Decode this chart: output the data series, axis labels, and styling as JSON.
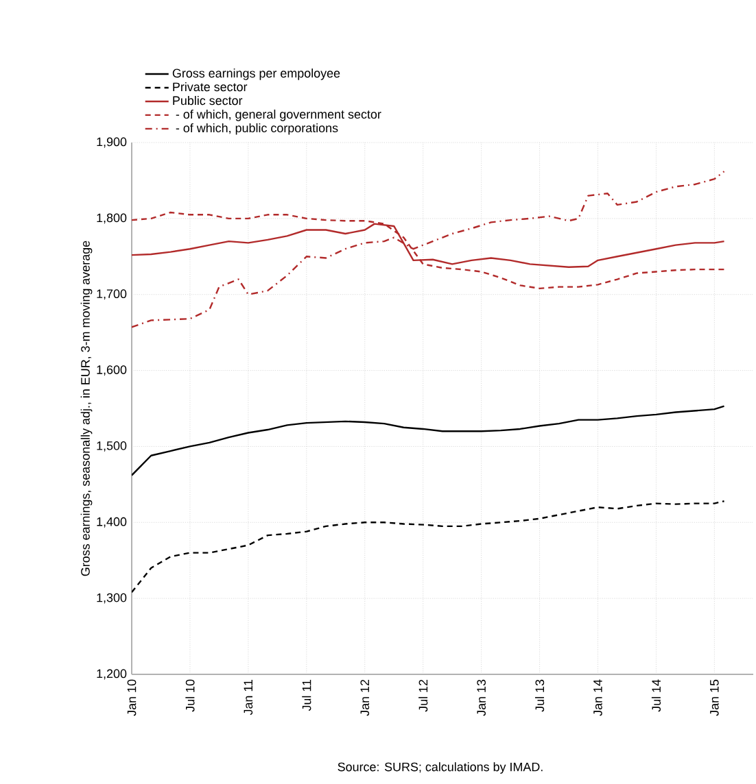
{
  "chart_data": {
    "type": "line",
    "xlabel": null,
    "ylabel": "Gross earnings, seasonally adj., in EUR, 3-m moving average",
    "annotations": [
      "Source: SURS; calculations by IMAD."
    ],
    "xlim": [
      "2010-01",
      "2015-05"
    ],
    "xticks": [
      {
        "value": "2010-01",
        "label": "Jan 10"
      },
      {
        "value": "2010-07",
        "label": "Jul 10"
      },
      {
        "value": "2011-01",
        "label": "Jan 11"
      },
      {
        "value": "2011-07",
        "label": "Jul 11"
      },
      {
        "value": "2012-01",
        "label": "Jan 12"
      },
      {
        "value": "2012-07",
        "label": "Jul 12"
      },
      {
        "value": "2013-01",
        "label": "Jan 13"
      },
      {
        "value": "2013-07",
        "label": "Jul 13"
      },
      {
        "value": "2014-01",
        "label": "Jan 14"
      },
      {
        "value": "2014-07",
        "label": "Jul 14"
      },
      {
        "value": "2015-01",
        "label": "Jan 15"
      }
    ],
    "ylim": [
      1200,
      1900
    ],
    "yticks": [
      {
        "value": 1200,
        "label": "1,200"
      },
      {
        "value": 1300,
        "label": "1,300"
      },
      {
        "value": 1400,
        "label": "1,400"
      },
      {
        "value": 1500,
        "label": "1,500"
      },
      {
        "value": 1600,
        "label": "1,600"
      },
      {
        "value": 1700,
        "label": "1,700"
      },
      {
        "value": 1800,
        "label": "1,800"
      },
      {
        "value": 1900,
        "label": "1,900"
      }
    ],
    "grid": true,
    "legend": "top",
    "marker": "none",
    "series": [
      {
        "name": "Gross earnings per empoloyee",
        "color": "#000000",
        "line_style": "solid",
        "x": [
          "2010-01",
          "2010-03",
          "2010-05",
          "2010-07",
          "2010-09",
          "2010-11",
          "2011-01",
          "2011-03",
          "2011-05",
          "2011-07",
          "2011-09",
          "2011-11",
          "2012-01",
          "2012-03",
          "2012-05",
          "2012-07",
          "2012-09",
          "2012-11",
          "2013-01",
          "2013-03",
          "2013-05",
          "2013-07",
          "2013-09",
          "2013-11",
          "2014-01",
          "2014-03",
          "2014-05",
          "2014-07",
          "2014-09",
          "2014-11",
          "2015-01",
          "2015-02"
        ],
        "values": [
          1462,
          1488,
          1494,
          1500,
          1505,
          1512,
          1518,
          1522,
          1528,
          1531,
          1532,
          1533,
          1532,
          1530,
          1525,
          1523,
          1520,
          1520,
          1520,
          1521,
          1523,
          1527,
          1530,
          1535,
          1535,
          1537,
          1540,
          1542,
          1545,
          1547,
          1549,
          1553
        ]
      },
      {
        "name": "Private sector",
        "color": "#000000",
        "line_style": "dashed",
        "x": [
          "2010-01",
          "2010-03",
          "2010-05",
          "2010-07",
          "2010-09",
          "2010-11",
          "2011-01",
          "2011-03",
          "2011-05",
          "2011-07",
          "2011-09",
          "2011-11",
          "2012-01",
          "2012-03",
          "2012-05",
          "2012-07",
          "2012-09",
          "2012-11",
          "2013-01",
          "2013-03",
          "2013-05",
          "2013-07",
          "2013-09",
          "2013-11",
          "2014-01",
          "2014-03",
          "2014-05",
          "2014-07",
          "2014-09",
          "2014-11",
          "2015-01",
          "2015-02"
        ],
        "values": [
          1308,
          1340,
          1355,
          1360,
          1360,
          1365,
          1370,
          1383,
          1385,
          1388,
          1395,
          1398,
          1400,
          1400,
          1398,
          1397,
          1395,
          1395,
          1398,
          1400,
          1402,
          1405,
          1410,
          1415,
          1420,
          1418,
          1422,
          1425,
          1424,
          1425,
          1425,
          1428
        ]
      },
      {
        "name": "Public sector",
        "color": "#b22a2a",
        "line_style": "solid",
        "x": [
          "2010-01",
          "2010-03",
          "2010-05",
          "2010-07",
          "2010-09",
          "2010-11",
          "2011-01",
          "2011-03",
          "2011-05",
          "2011-07",
          "2011-09",
          "2011-11",
          "2012-01",
          "2012-02",
          "2012-04",
          "2012-06",
          "2012-08",
          "2012-10",
          "2012-12",
          "2013-02",
          "2013-04",
          "2013-06",
          "2013-08",
          "2013-10",
          "2013-12",
          "2014-01",
          "2014-03",
          "2014-05",
          "2014-07",
          "2014-09",
          "2014-11",
          "2015-01",
          "2015-02"
        ],
        "values": [
          1752,
          1753,
          1756,
          1760,
          1765,
          1770,
          1768,
          1772,
          1777,
          1785,
          1785,
          1780,
          1785,
          1793,
          1790,
          1745,
          1746,
          1740,
          1745,
          1748,
          1745,
          1740,
          1738,
          1736,
          1737,
          1745,
          1750,
          1755,
          1760,
          1765,
          1768,
          1768,
          1770
        ]
      },
      {
        "name": "     - of which, general government sector",
        "color": "#b22a2a",
        "line_style": "dashed",
        "x": [
          "2010-01",
          "2010-03",
          "2010-05",
          "2010-07",
          "2010-09",
          "2010-11",
          "2011-01",
          "2011-03",
          "2011-05",
          "2011-07",
          "2011-09",
          "2011-11",
          "2012-01",
          "2012-03",
          "2012-05",
          "2012-07",
          "2012-09",
          "2012-11",
          "2013-01",
          "2013-03",
          "2013-05",
          "2013-07",
          "2013-09",
          "2013-11",
          "2014-01",
          "2014-03",
          "2014-05",
          "2014-07",
          "2014-09",
          "2014-11",
          "2015-01",
          "2015-02"
        ],
        "values": [
          1798,
          1800,
          1808,
          1805,
          1805,
          1800,
          1800,
          1805,
          1805,
          1800,
          1798,
          1797,
          1797,
          1793,
          1775,
          1740,
          1735,
          1733,
          1730,
          1722,
          1712,
          1708,
          1710,
          1710,
          1713,
          1720,
          1728,
          1730,
          1732,
          1733,
          1733,
          1733
        ]
      },
      {
        "name": "     - of which, public corporations",
        "color": "#b22a2a",
        "line_style": "dashdot",
        "x": [
          "2010-01",
          "2010-03",
          "2010-05",
          "2010-07",
          "2010-09",
          "2010-10",
          "2010-12",
          "2011-01",
          "2011-03",
          "2011-05",
          "2011-07",
          "2011-09",
          "2011-11",
          "2012-01",
          "2012-03",
          "2012-04",
          "2012-06",
          "2012-08",
          "2012-10",
          "2012-12",
          "2013-02",
          "2013-04",
          "2013-06",
          "2013-08",
          "2013-10",
          "2013-11",
          "2013-12",
          "2014-02",
          "2014-03",
          "2014-05",
          "2014-07",
          "2014-09",
          "2014-11",
          "2015-01",
          "2015-02"
        ],
        "values": [
          1657,
          1666,
          1667,
          1668,
          1680,
          1710,
          1720,
          1700,
          1705,
          1725,
          1750,
          1748,
          1760,
          1768,
          1770,
          1775,
          1760,
          1770,
          1780,
          1787,
          1795,
          1798,
          1800,
          1803,
          1797,
          1800,
          1830,
          1833,
          1818,
          1822,
          1835,
          1842,
          1845,
          1852,
          1862
        ]
      }
    ]
  }
}
